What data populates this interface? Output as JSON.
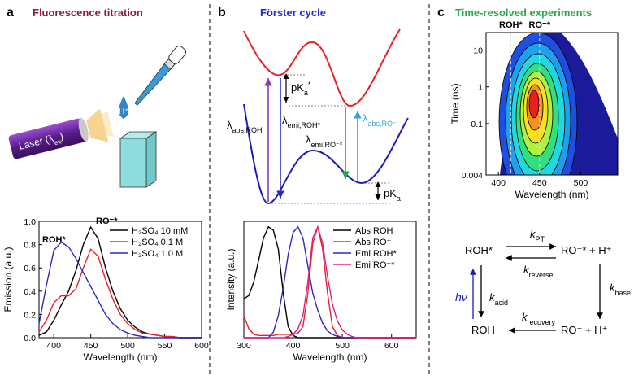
{
  "panel_a": {
    "letter": "a",
    "title": "Fluorescence titration",
    "laser": {
      "base": "Laser (λ",
      "sub": "ex",
      "tail": ")"
    },
    "drop": "H⁺",
    "chart": {
      "type": "line",
      "xlabel": "Wavelength (nm)",
      "ylabel": "Emission (a.u.)",
      "xlim": [
        380,
        600
      ],
      "xticks": [
        400,
        450,
        500,
        550,
        600
      ],
      "ylim": [
        0,
        1.0
      ],
      "yticks": [
        {
          "value": 0,
          "label": "0.0"
        },
        {
          "value": 0.2,
          "label": "0.2"
        },
        {
          "value": 0.4,
          "label": "0.4"
        },
        {
          "value": 0.6,
          "label": "0.6"
        },
        {
          "value": 0.8,
          "label": "0.8"
        },
        {
          "value": 1.0,
          "label": "1.0"
        }
      ],
      "annotations": [
        "ROH*",
        "RO⁻*"
      ],
      "x": [
        380,
        390,
        400,
        410,
        420,
        430,
        440,
        450,
        460,
        470,
        480,
        490,
        500,
        510,
        520,
        530,
        540,
        550,
        560,
        570,
        580,
        590,
        600
      ],
      "series": [
        {
          "name": "H₂SO₄ 10 mM",
          "color": "#000000",
          "values": [
            0.02,
            0.05,
            0.15,
            0.28,
            0.4,
            0.58,
            0.8,
            0.95,
            0.85,
            0.6,
            0.4,
            0.25,
            0.15,
            0.09,
            0.05,
            0.03,
            0.02,
            0.01,
            0.01,
            0,
            0,
            0,
            0
          ]
        },
        {
          "name": "H₂SO₄ 0.1 M",
          "color": "#e8202a",
          "values": [
            0.05,
            0.15,
            0.3,
            0.36,
            0.36,
            0.42,
            0.6,
            0.76,
            0.7,
            0.5,
            0.33,
            0.2,
            0.12,
            0.07,
            0.04,
            0.03,
            0.02,
            0.01,
            0.01,
            0,
            0,
            0,
            0
          ]
        },
        {
          "name": "H₂SO₄ 1.0 M",
          "color": "#2b2bb8",
          "values": [
            0.12,
            0.45,
            0.75,
            0.82,
            0.78,
            0.68,
            0.56,
            0.44,
            0.32,
            0.2,
            0.12,
            0.07,
            0.04,
            0.02,
            0.01,
            0,
            0,
            0,
            0,
            0,
            0,
            0,
            0
          ]
        }
      ]
    }
  },
  "panel_b": {
    "letter": "b",
    "title": "Förster cycle",
    "labels": {
      "pka_star": {
        "base": "pK",
        "sub": "a",
        "sup": "*"
      },
      "abs_roh": {
        "base": "λ",
        "sub": "abs,ROH"
      },
      "emi_roh": {
        "base": "λ",
        "sub": "emi,ROH*"
      },
      "emi_ro": {
        "base": "λ",
        "sub": "emi,RO⁻*"
      },
      "abs_ro": {
        "base": "λ",
        "sub": "abs,RO⁻"
      },
      "pka": {
        "base": "pK",
        "sub": "a"
      }
    },
    "chart": {
      "type": "line",
      "xlabel": "Wavelength (nm)",
      "ylabel": "Intensity (a.u.)",
      "xlim": [
        300,
        650
      ],
      "xticks": [
        300,
        400,
        500,
        600
      ],
      "ylim": [
        0,
        1.05
      ],
      "x": [
        300,
        310,
        320,
        330,
        340,
        350,
        360,
        370,
        380,
        390,
        400,
        410,
        420,
        430,
        440,
        450,
        460,
        470,
        480,
        490,
        500,
        510,
        520,
        530,
        540,
        550,
        560,
        570,
        580,
        590,
        600,
        610,
        620,
        630,
        640,
        650
      ],
      "series": [
        {
          "name": "Abs ROH",
          "color": "#000000",
          "values": [
            0.35,
            0.38,
            0.5,
            0.7,
            0.9,
            1.0,
            0.97,
            0.8,
            0.4,
            0.1,
            0.02,
            0,
            0,
            0,
            0,
            0,
            0,
            0,
            0,
            0,
            0,
            0,
            0,
            0,
            0,
            0,
            0,
            0,
            0,
            0,
            0,
            0,
            0,
            0,
            0,
            0
          ]
        },
        {
          "name": "Abs RO⁻",
          "color": "#e8202a",
          "values": [
            0.2,
            0.08,
            0.03,
            0.02,
            0.02,
            0.02,
            0.02,
            0.03,
            0.03,
            0.03,
            0.03,
            0.04,
            0.1,
            0.4,
            0.85,
            1.0,
            0.8,
            0.4,
            0.1,
            0.02,
            0,
            0,
            0,
            0,
            0,
            0,
            0,
            0,
            0,
            0,
            0,
            0,
            0,
            0,
            0,
            0
          ]
        },
        {
          "name": "Emi ROH*",
          "color": "#2b2bb8",
          "values": [
            0,
            0,
            0,
            0,
            0,
            0,
            0.05,
            0.2,
            0.45,
            0.75,
            0.95,
            1.0,
            0.9,
            0.65,
            0.4,
            0.25,
            0.13,
            0.06,
            0.03,
            0.01,
            0,
            0,
            0,
            0,
            0,
            0,
            0,
            0,
            0,
            0,
            0,
            0,
            0,
            0,
            0,
            0
          ]
        },
        {
          "name": "Emi RO⁻*",
          "color": "#e0207a",
          "values": [
            0,
            0,
            0,
            0,
            0,
            0,
            0,
            0,
            0,
            0.01,
            0.03,
            0.08,
            0.2,
            0.5,
            0.9,
            1.0,
            0.85,
            0.55,
            0.3,
            0.15,
            0.07,
            0.03,
            0.01,
            0,
            0,
            0,
            0,
            0,
            0,
            0,
            0,
            0,
            0,
            0,
            0,
            0
          ]
        }
      ]
    }
  },
  "panel_c": {
    "letter": "c",
    "title": "Time-resolved experiments",
    "heatmap": {
      "xlabel": "Wavelength (nm)",
      "ylabel": "Time (ns)",
      "xlim": [
        385,
        545
      ],
      "xticks": [
        400,
        450,
        500
      ],
      "ylim": [
        0.004,
        30
      ],
      "log_y": true,
      "yticks": [
        0.004,
        0.1,
        1,
        10
      ],
      "markers": [
        {
          "label": "ROH*",
          "x": 415
        },
        {
          "label": "RO⁻*",
          "x": 450
        }
      ]
    },
    "scheme": {
      "roh_star": "ROH*",
      "ro_star": "RO⁻* + H⁺",
      "roh": "ROH",
      "ro": "RO⁻ + H⁺",
      "k_pt": {
        "base": "k",
        "sub": "PT"
      },
      "k_reverse": {
        "base": "k",
        "sub": "reverse"
      },
      "k_acid": {
        "base": "k",
        "sub": "acid"
      },
      "k_base": {
        "base": "k",
        "sub": "base"
      },
      "k_recovery": {
        "base": "k",
        "sub": "recovery"
      },
      "hv": "hν"
    }
  }
}
